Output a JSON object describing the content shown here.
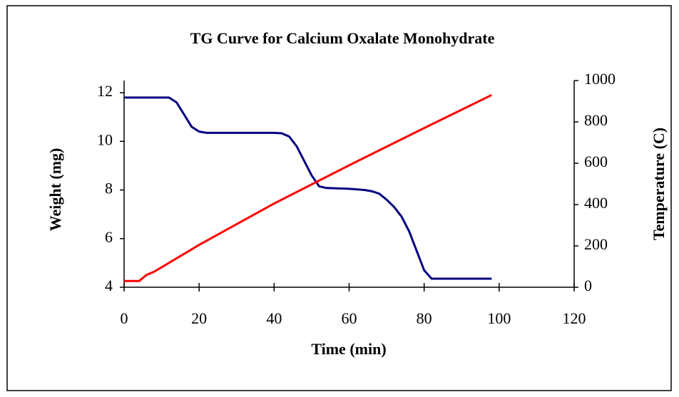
{
  "chart_data": {
    "type": "line",
    "title": "TG Curve for Calcium Oxalate Monohydrate",
    "x_label": "Time (min)",
    "y_label": "Weight (mg)",
    "y2_label": "Temperature (C)",
    "xlim": [
      0,
      120
    ],
    "xticks": [
      0,
      20,
      40,
      60,
      80,
      100,
      120
    ],
    "ylim": [
      4,
      12.5
    ],
    "yticks": [
      4,
      6,
      8,
      10,
      12
    ],
    "y2lim": [
      0,
      1000
    ],
    "y2ticks": [
      0,
      200,
      400,
      600,
      800,
      1000
    ],
    "series": [
      {
        "name": "Weight",
        "color": "#000080",
        "x": [
          0,
          12,
          14,
          16,
          18,
          20,
          22,
          40,
          42,
          44,
          46,
          48,
          50,
          52,
          54,
          60,
          64,
          66,
          68,
          70,
          72,
          74,
          76,
          78,
          80,
          82,
          84,
          98
        ],
        "values": [
          11.8,
          11.8,
          11.6,
          11.1,
          10.6,
          10.4,
          10.35,
          10.35,
          10.33,
          10.2,
          9.8,
          9.2,
          8.6,
          8.15,
          8.08,
          8.05,
          8.0,
          7.95,
          7.85,
          7.6,
          7.3,
          6.9,
          6.3,
          5.5,
          4.7,
          4.35,
          4.35,
          4.35
        ]
      },
      {
        "name": "Temperature",
        "color": "#ff0000",
        "axis": "y2",
        "x": [
          0,
          4,
          6,
          8,
          20,
          40,
          60,
          80,
          98
        ],
        "values": [
          30,
          30,
          60,
          75,
          205,
          405,
          590,
          770,
          930
        ]
      }
    ]
  }
}
